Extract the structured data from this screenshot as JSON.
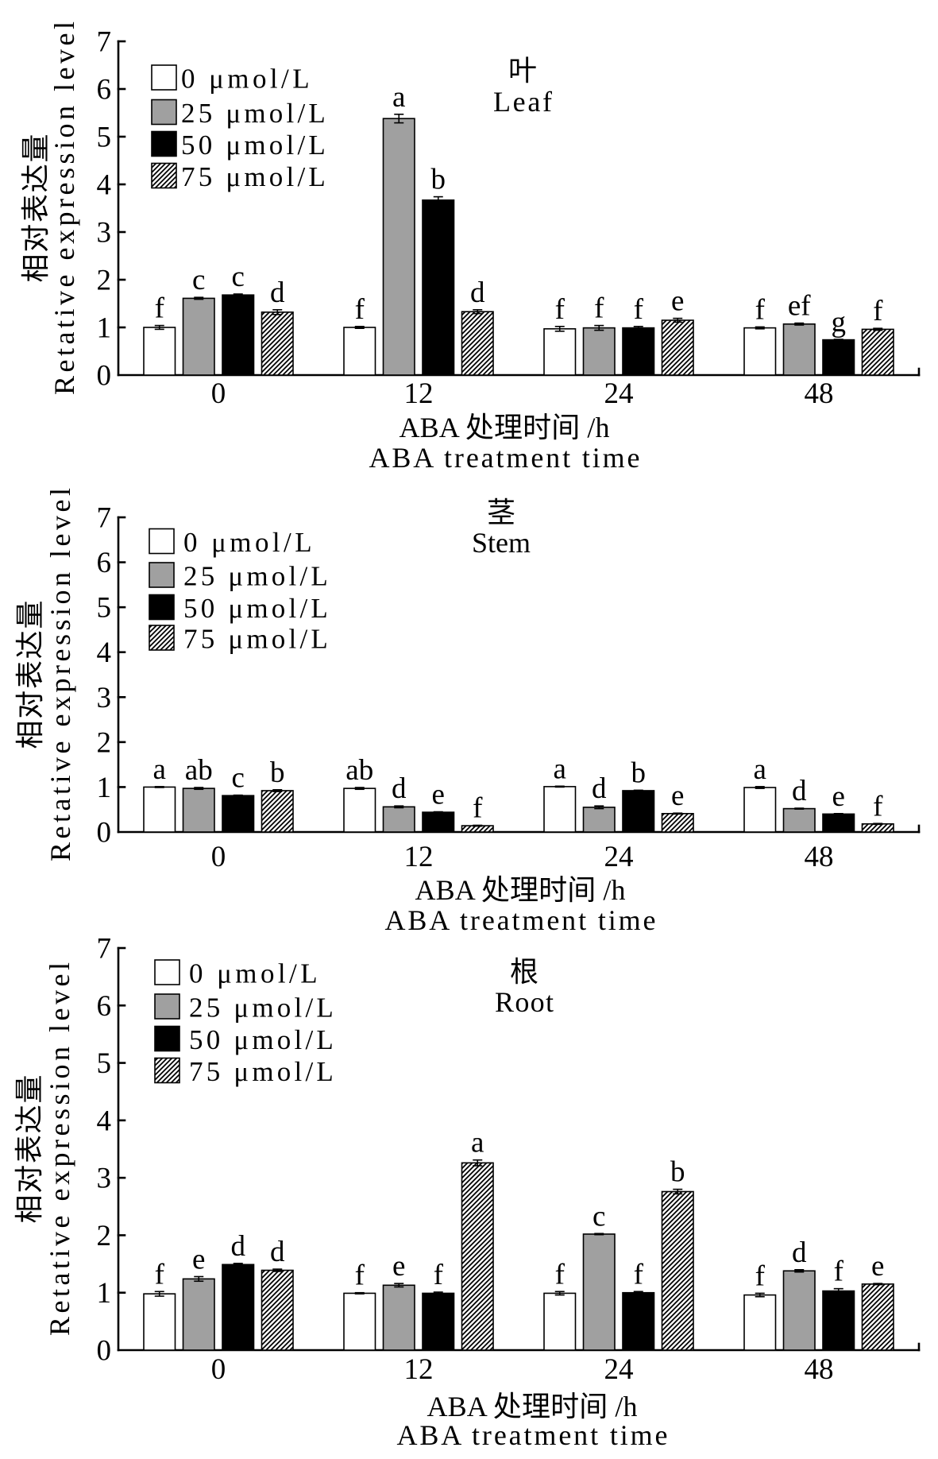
{
  "chart_data": [
    {
      "type": "bar",
      "title_cn": "叶",
      "title_en": "Leaf",
      "xlabel_cn": "ABA 处理时间 /h",
      "xlabel_en": "ABA treatment time",
      "ylabel_cn": "相对表达量",
      "ylabel_en": "Retative expression level",
      "categories": [
        "0",
        "12",
        "24",
        "48"
      ],
      "ylim": [
        0,
        7
      ],
      "yticks": [
        0,
        1,
        2,
        3,
        4,
        5,
        6,
        7
      ],
      "grid": false,
      "legend_position": "top-left",
      "series": [
        {
          "name": "0 μmol/L",
          "fill": "#ffffff",
          "pattern": null,
          "values": [
            1.0,
            1.0,
            0.97,
            0.99
          ],
          "errors": [
            0.04,
            0.02,
            0.05,
            0.02
          ],
          "letters": [
            "f",
            "f",
            "f",
            "f"
          ]
        },
        {
          "name": "25 μmol/L",
          "fill": "#a0a0a0",
          "pattern": null,
          "values": [
            1.61,
            5.38,
            0.99,
            1.07
          ],
          "errors": [
            0.02,
            0.09,
            0.05,
            0.02
          ],
          "letters": [
            "c",
            "a",
            "f",
            "ef"
          ]
        },
        {
          "name": "50 μmol/L",
          "fill": "#000000",
          "pattern": null,
          "values": [
            1.68,
            3.67,
            0.99,
            0.74
          ],
          "errors": [
            0.02,
            0.07,
            0.03,
            0.01
          ],
          "letters": [
            "c",
            "b",
            "f",
            "g"
          ]
        },
        {
          "name": "75 μmol/L",
          "fill": "#ffffff",
          "pattern": "diagonal-hatch",
          "values": [
            1.32,
            1.33,
            1.15,
            0.96
          ],
          "errors": [
            0.05,
            0.04,
            0.04,
            0.02
          ],
          "letters": [
            "d",
            "d",
            "e",
            "f"
          ]
        }
      ]
    },
    {
      "type": "bar",
      "title_cn": "茎",
      "title_en": "Stem",
      "xlabel_cn": "ABA 处理时间 /h",
      "xlabel_en": "ABA treatment time",
      "ylabel_cn": "相对表达量",
      "ylabel_en": "Retative expression level",
      "categories": [
        "0",
        "12",
        "24",
        "48"
      ],
      "ylim": [
        0,
        7
      ],
      "yticks": [
        0,
        1,
        2,
        3,
        4,
        5,
        6,
        7
      ],
      "grid": false,
      "legend_position": "top-left",
      "series": [
        {
          "name": "0 μmol/L",
          "fill": "#ffffff",
          "pattern": null,
          "values": [
            1.0,
            0.97,
            1.01,
            0.99
          ],
          "errors": [
            0.01,
            0.02,
            0.01,
            0.02
          ],
          "letters": [
            "a",
            "ab",
            "a",
            "a"
          ]
        },
        {
          "name": "25 μmol/L",
          "fill": "#a0a0a0",
          "pattern": null,
          "values": [
            0.97,
            0.56,
            0.55,
            0.52
          ],
          "errors": [
            0.02,
            0.02,
            0.03,
            0.01
          ],
          "letters": [
            "ab",
            "d",
            "d",
            "d"
          ]
        },
        {
          "name": "50 μmol/L",
          "fill": "#000000",
          "pattern": null,
          "values": [
            0.81,
            0.44,
            0.92,
            0.4
          ],
          "errors": [
            0.01,
            0.01,
            0.01,
            0.01
          ],
          "letters": [
            "c",
            "e",
            "b",
            "e"
          ]
        },
        {
          "name": "75 μmol/L",
          "fill": "#ffffff",
          "pattern": "diagonal-hatch",
          "values": [
            0.92,
            0.14,
            0.41,
            0.18
          ],
          "errors": [
            0.02,
            0.01,
            0.01,
            0.01
          ],
          "letters": [
            "b",
            "f",
            "e",
            "f"
          ]
        }
      ]
    },
    {
      "type": "bar",
      "title_cn": "根",
      "title_en": "Root",
      "xlabel_cn": "ABA 处理时间 /h",
      "xlabel_en": "ABA treatment time",
      "ylabel_cn": "相对表达量",
      "ylabel_en": "Retative expression level",
      "categories": [
        "0",
        "12",
        "24",
        "48"
      ],
      "ylim": [
        0,
        7
      ],
      "yticks": [
        0,
        1,
        2,
        3,
        4,
        5,
        6,
        7
      ],
      "grid": false,
      "legend_position": "top-left",
      "series": [
        {
          "name": "0 μmol/L",
          "fill": "#ffffff",
          "pattern": null,
          "values": [
            0.98,
            0.99,
            0.99,
            0.96
          ],
          "errors": [
            0.04,
            0.01,
            0.03,
            0.03
          ],
          "letters": [
            "f",
            "f",
            "f",
            "f"
          ]
        },
        {
          "name": "25 μmol/L",
          "fill": "#a0a0a0",
          "pattern": null,
          "values": [
            1.24,
            1.13,
            2.02,
            1.38
          ],
          "errors": [
            0.04,
            0.03,
            0.01,
            0.02
          ],
          "letters": [
            "e",
            "e",
            "c",
            "d"
          ]
        },
        {
          "name": "50 μmol/L",
          "fill": "#000000",
          "pattern": null,
          "values": [
            1.49,
            0.99,
            1.0,
            1.03
          ],
          "errors": [
            0.02,
            0.02,
            0.02,
            0.04
          ],
          "letters": [
            "d",
            "f",
            "f",
            "f"
          ]
        },
        {
          "name": "75 μmol/L",
          "fill": "#ffffff",
          "pattern": "diagonal-hatch",
          "values": [
            1.39,
            3.26,
            2.76,
            1.15
          ],
          "errors": [
            0.02,
            0.05,
            0.04,
            0.01
          ],
          "letters": [
            "d",
            "a",
            "b",
            "e"
          ]
        }
      ]
    }
  ]
}
